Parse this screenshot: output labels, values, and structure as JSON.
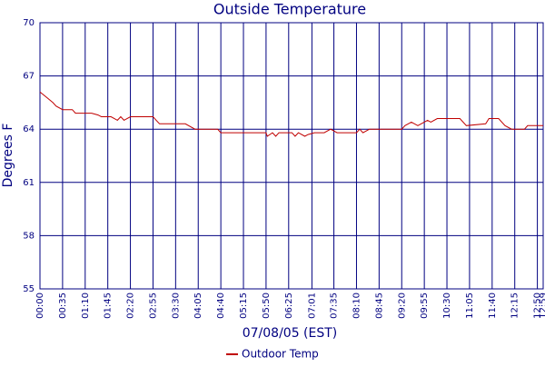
{
  "chart_data": {
    "type": "line",
    "title": "Outside Temperature",
    "x_label": "07/08/05 (EST)",
    "y_label": "Degrees F",
    "x": [
      "00:00",
      "00:10",
      "00:20",
      "00:25",
      "00:35",
      "00:50",
      "00:55",
      "01:20",
      "01:30",
      "01:35",
      "01:50",
      "02:00",
      "02:05",
      "02:10",
      "02:20",
      "02:55",
      "03:00",
      "03:05",
      "03:45",
      "04:00",
      "04:35",
      "04:40",
      "05:50",
      "05:52",
      "06:00",
      "06:05",
      "06:10",
      "06:30",
      "06:35",
      "06:40",
      "06:50",
      "06:55",
      "07:05",
      "07:20",
      "07:30",
      "07:40",
      "08:10",
      "08:15",
      "08:20",
      "08:30",
      "09:20",
      "09:25",
      "09:35",
      "09:45",
      "10:00",
      "10:05",
      "10:15",
      "10:50",
      "11:00",
      "11:30",
      "11:35",
      "11:50",
      "12:00",
      "12:10",
      "12:30",
      "12:35",
      "12:59"
    ],
    "series": [
      {
        "name": "Outdoor Temp",
        "color": "#c00000",
        "values": [
          66.1,
          65.8,
          65.5,
          65.3,
          65.1,
          65.1,
          64.9,
          64.9,
          64.8,
          64.7,
          64.7,
          64.5,
          64.7,
          64.5,
          64.7,
          64.7,
          64.5,
          64.3,
          64.3,
          64.0,
          64.0,
          63.8,
          63.8,
          63.6,
          63.8,
          63.6,
          63.8,
          63.8,
          63.6,
          63.8,
          63.6,
          63.7,
          63.8,
          63.8,
          64.0,
          63.8,
          63.8,
          64.0,
          63.8,
          64.0,
          64.0,
          64.2,
          64.4,
          64.2,
          64.5,
          64.4,
          64.6,
          64.6,
          64.2,
          64.3,
          64.6,
          64.6,
          64.2,
          64.0,
          64.0,
          64.2,
          64.2
        ]
      }
    ],
    "xlim": [
      "00:00",
      "12:59"
    ],
    "xticks": [
      "00:00",
      "00:35",
      "01:10",
      "01:45",
      "02:20",
      "02:55",
      "03:30",
      "04:05",
      "04:40",
      "05:15",
      "05:50",
      "06:25",
      "07:01",
      "07:35",
      "08:10",
      "08:45",
      "09:20",
      "09:55",
      "10:30",
      "11:05",
      "11:40",
      "12:15",
      "12:50",
      "12:59"
    ],
    "ylim": [
      55,
      70
    ],
    "yticks": [
      55,
      58,
      61,
      64,
      67,
      70
    ],
    "grid": true,
    "legend": "bottom"
  }
}
